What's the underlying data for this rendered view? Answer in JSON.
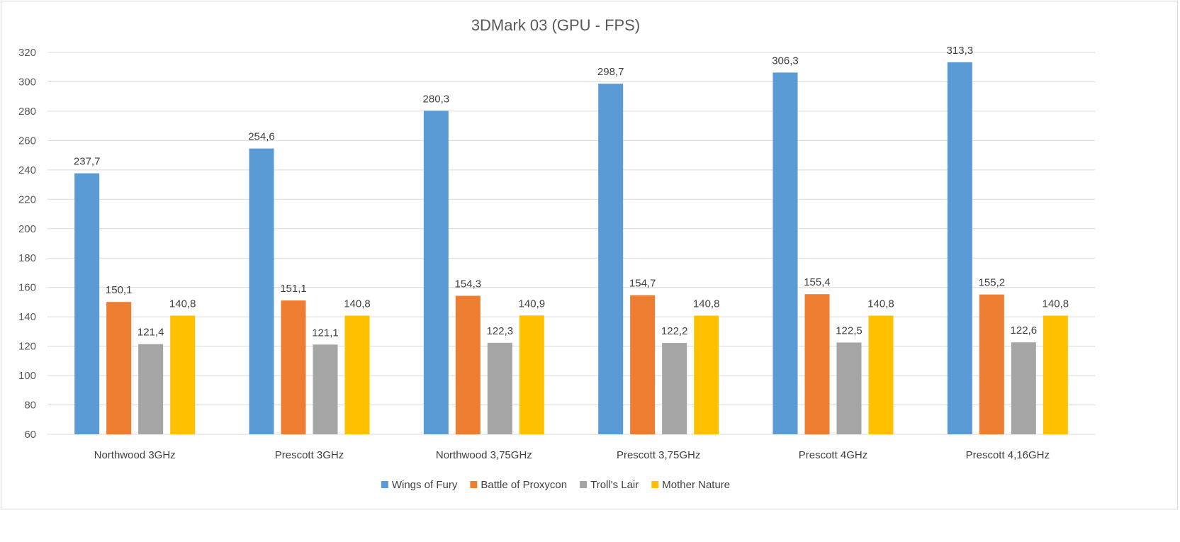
{
  "chart_data": {
    "type": "bar",
    "title": "3DMark 03 (GPU - FPS)",
    "xlabel": "",
    "ylabel": "",
    "ylim": [
      60,
      320
    ],
    "yticks": [
      60,
      80,
      100,
      120,
      140,
      160,
      180,
      200,
      220,
      240,
      260,
      280,
      300,
      320
    ],
    "grid": true,
    "legend_position": "bottom",
    "categories": [
      "Northwood 3GHz",
      "Prescott 3GHz",
      "Northwood 3,75GHz",
      "Prescott 3,75GHz",
      "Prescott 4GHz",
      "Prescott 4,16GHz"
    ],
    "series": [
      {
        "name": "Wings of Fury",
        "color": "#5b9bd5",
        "values": [
          237.7,
          254.6,
          280.3,
          298.7,
          306.3,
          313.3
        ],
        "labels": [
          "237,7",
          "254,6",
          "280,3",
          "298,7",
          "306,3",
          "313,3"
        ]
      },
      {
        "name": "Battle of Proxycon",
        "color": "#ed7d31",
        "values": [
          150.1,
          151.1,
          154.3,
          154.7,
          155.4,
          155.2
        ],
        "labels": [
          "150,1",
          "151,1",
          "154,3",
          "154,7",
          "155,4",
          "155,2"
        ]
      },
      {
        "name": "Troll's Lair",
        "color": "#a5a5a5",
        "values": [
          121.4,
          121.1,
          122.3,
          122.2,
          122.5,
          122.6
        ],
        "labels": [
          "121,4",
          "121,1",
          "122,3",
          "122,2",
          "122,5",
          "122,6"
        ]
      },
      {
        "name": "Mother Nature",
        "color": "#ffc000",
        "values": [
          140.8,
          140.8,
          140.9,
          140.8,
          140.8,
          140.8
        ],
        "labels": [
          "140,8",
          "140,8",
          "140,9",
          "140,8",
          "140,8",
          "140,8"
        ]
      }
    ]
  }
}
